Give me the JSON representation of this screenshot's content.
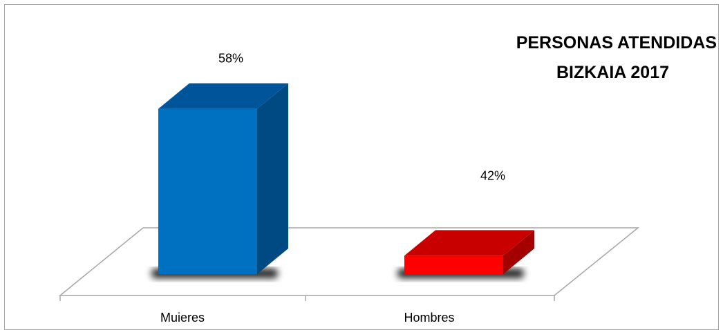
{
  "chart_data": {
    "type": "bar",
    "title_lines": [
      "PERSONAS ATENDIDAS",
      "BIZKAIA 2017"
    ],
    "categories": [
      "Mujeres",
      "Hombres"
    ],
    "values": [
      58,
      42
    ],
    "data_labels": [
      "58%",
      "42%"
    ],
    "unit": "%",
    "xlabel": "",
    "ylabel": "",
    "ylim": [
      40,
      60
    ],
    "grid": false,
    "legend": "none",
    "style": "3d-column",
    "colors": {
      "bars": [
        "#0070c0",
        "#ff0000"
      ],
      "bar_tops": [
        "#00559a",
        "#c80000"
      ],
      "bar_sides": [
        "#004a84",
        "#a50000"
      ],
      "floor_edge": "#a6a6a6"
    }
  }
}
